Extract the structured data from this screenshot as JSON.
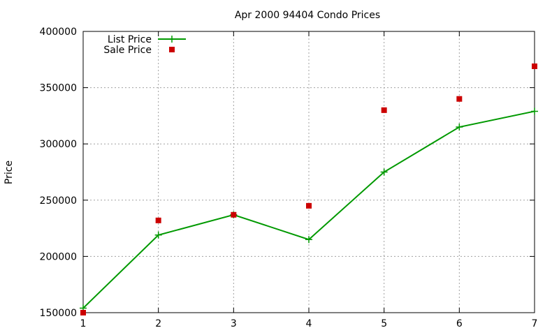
{
  "chart_data": {
    "type": "line",
    "title": "Apr 2000 94404 Condo Prices",
    "xlabel": "",
    "ylabel": "Price",
    "xlim": [
      1,
      7
    ],
    "ylim": [
      150000,
      400000
    ],
    "xticks": [
      1,
      2,
      3,
      4,
      5,
      6,
      7
    ],
    "yticks": [
      150000,
      200000,
      250000,
      300000,
      350000,
      400000
    ],
    "grid": true,
    "legend_position": "top-left",
    "series": [
      {
        "name": "List Price",
        "style": "line-with-plus-markers",
        "color": "#009900",
        "x": [
          1,
          2,
          3,
          4,
          5,
          6,
          7
        ],
        "values": [
          154000,
          219000,
          237000,
          215000,
          275000,
          315000,
          329000
        ]
      },
      {
        "name": "Sale Price",
        "style": "square-points",
        "color": "#cc0000",
        "x": [
          1,
          2,
          3,
          4,
          5,
          6,
          7
        ],
        "values": [
          150000,
          232000,
          237000,
          245000,
          330000,
          340000,
          369000
        ]
      }
    ]
  }
}
